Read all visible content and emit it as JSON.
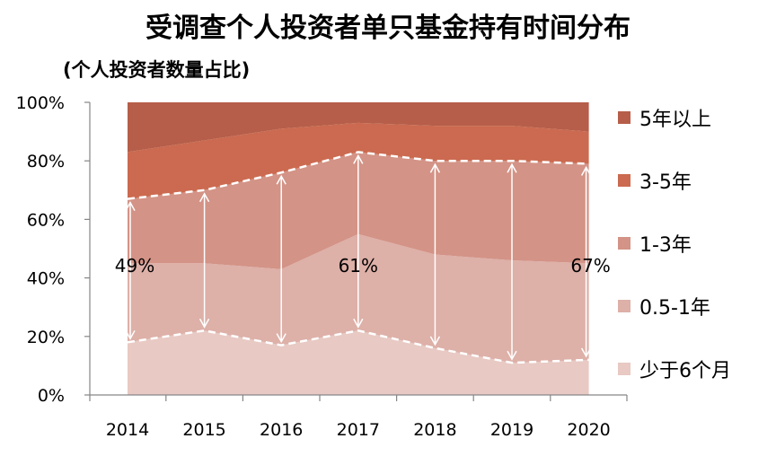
{
  "chart_data": {
    "type": "area",
    "stacked": true,
    "percent": true,
    "title": "受调查个人投资者单只基金持有时间分布",
    "ylabel": "(个人投资者数量占比)",
    "xlabel": "",
    "categories": [
      "2014",
      "2015",
      "2016",
      "2017",
      "2018",
      "2019",
      "2020"
    ],
    "yticks": [
      "0%",
      "20%",
      "40%",
      "60%",
      "80%",
      "100%"
    ],
    "ylim": [
      0,
      100
    ],
    "series": [
      {
        "name": "少于6个月",
        "color": "#e8c9c3",
        "values": [
          18,
          22,
          17,
          22,
          16,
          11,
          12
        ]
      },
      {
        "name": "0.5-1年",
        "color": "#ddb0a8",
        "values": [
          27,
          23,
          26,
          33,
          32,
          35,
          33
        ]
      },
      {
        "name": "1-3年",
        "color": "#d39386",
        "values": [
          22,
          25,
          33,
          28,
          32,
          34,
          34
        ]
      },
      {
        "name": "3-5年",
        "color": "#cb6a50",
        "values": [
          16,
          17,
          15,
          10,
          12,
          12,
          11
        ]
      },
      {
        "name": "5年以上",
        "color": "#b65e49",
        "values": [
          17,
          13,
          9,
          7,
          8,
          8,
          10
        ]
      }
    ],
    "legend_position": "right",
    "grid": false,
    "annotations": [
      {
        "category": "2014",
        "text": "49%"
      },
      {
        "category": "2017",
        "text": "61%"
      },
      {
        "category": "2020",
        "text": "67%"
      }
    ]
  }
}
